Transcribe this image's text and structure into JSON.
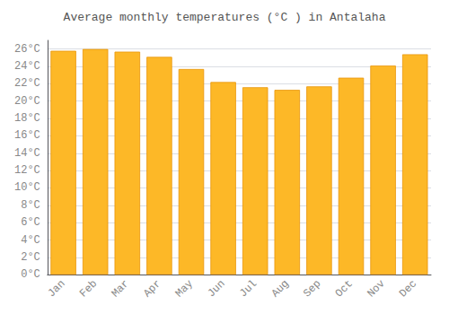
{
  "chart_data": {
    "type": "bar",
    "title": "Average monthly temperatures (°C ) in Antalaha",
    "categories": [
      "Jan",
      "Feb",
      "Mar",
      "Apr",
      "May",
      "Jun",
      "Jul",
      "Aug",
      "Sep",
      "Oct",
      "Nov",
      "Dec"
    ],
    "values": [
      25.8,
      26.0,
      25.7,
      25.1,
      23.7,
      22.2,
      21.6,
      21.3,
      21.7,
      22.7,
      24.1,
      25.4
    ],
    "color": "#FDB827",
    "ylim": [
      0,
      27
    ],
    "yticks": [
      {
        "value": 0,
        "label": "0°C"
      },
      {
        "value": 2,
        "label": "2°C"
      },
      {
        "value": 4,
        "label": "4°C"
      },
      {
        "value": 6,
        "label": "6°C"
      },
      {
        "value": 8,
        "label": "8°C"
      },
      {
        "value": 10,
        "label": "10°C"
      },
      {
        "value": 12,
        "label": "12°C"
      },
      {
        "value": 14,
        "label": "14°C"
      },
      {
        "value": 16,
        "label": "16°C"
      },
      {
        "value": 18,
        "label": "18°C"
      },
      {
        "value": 20,
        "label": "20°C"
      },
      {
        "value": 22,
        "label": "22°C"
      },
      {
        "value": 24,
        "label": "24°C"
      },
      {
        "value": 26,
        "label": "26°C"
      }
    ],
    "grid": true
  }
}
